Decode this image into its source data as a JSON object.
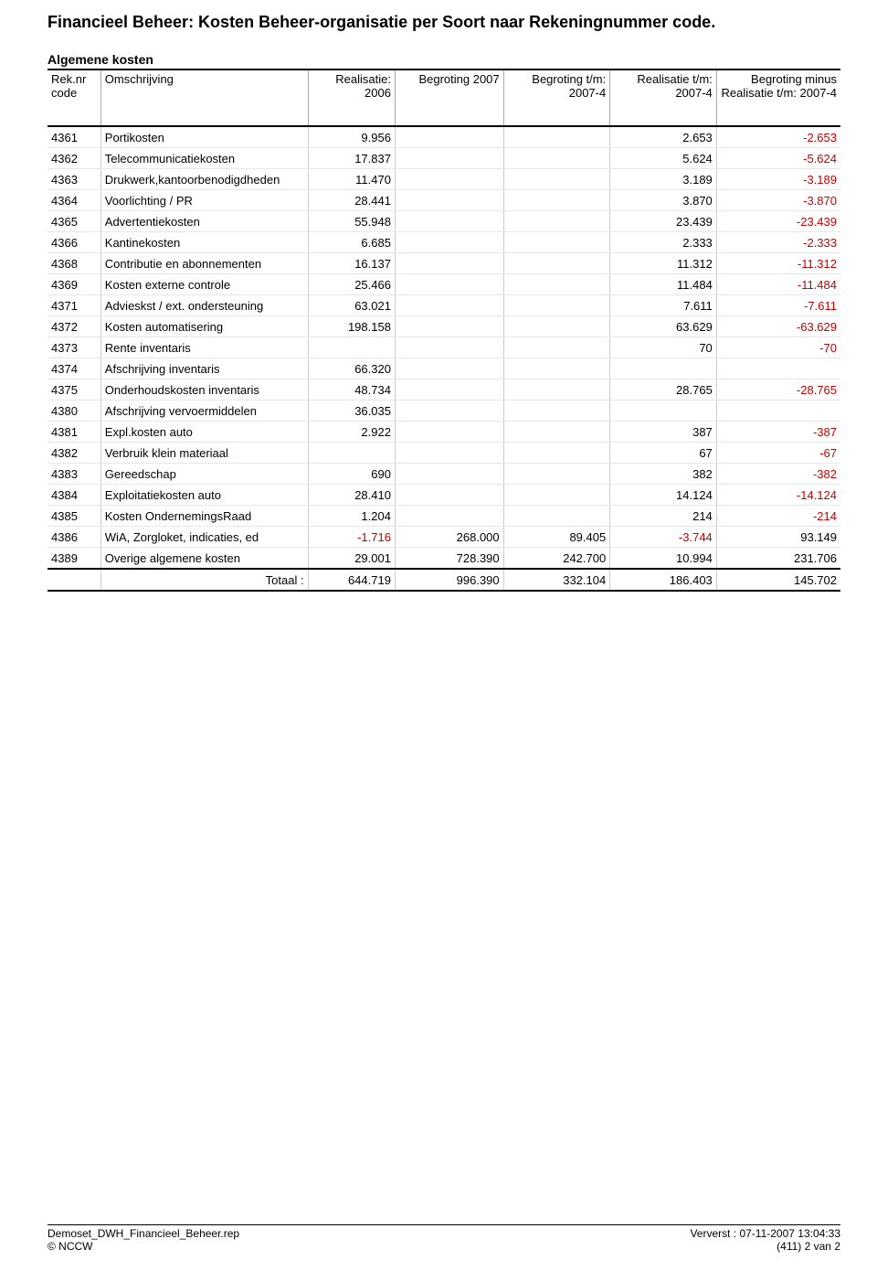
{
  "title": "Financieel Beheer: Kosten Beheer-organisatie per Soort naar Rekeningnummer code.",
  "section": "Algemene kosten",
  "columns": {
    "code": "Rek.nr code",
    "desc": "Omschrijving",
    "r2006": "Realisatie: 2006",
    "b2007": "Begroting 2007",
    "btm": "Begroting t/m: 2007-4",
    "rtm": "Realisatie t/m: 2007-4",
    "bmr": "Begroting minus Realisatie t/m: 2007-4"
  },
  "rows": [
    {
      "code": "4361",
      "desc": "Portikosten",
      "r2006": "9.956",
      "b2007": "",
      "btm": "",
      "rtm": "2.653",
      "bmr": "-2.653"
    },
    {
      "code": "4362",
      "desc": "Telecommunicatiekosten",
      "r2006": "17.837",
      "b2007": "",
      "btm": "",
      "rtm": "5.624",
      "bmr": "-5.624"
    },
    {
      "code": "4363",
      "desc": "Drukwerk,kantoorbenodigdheden",
      "r2006": "11.470",
      "b2007": "",
      "btm": "",
      "rtm": "3.189",
      "bmr": "-3.189"
    },
    {
      "code": "4364",
      "desc": "Voorlichting / PR",
      "r2006": "28.441",
      "b2007": "",
      "btm": "",
      "rtm": "3.870",
      "bmr": "-3.870"
    },
    {
      "code": "4365",
      "desc": "Advertentiekosten",
      "r2006": "55.948",
      "b2007": "",
      "btm": "",
      "rtm": "23.439",
      "bmr": "-23.439"
    },
    {
      "code": "4366",
      "desc": "Kantinekosten",
      "r2006": "6.685",
      "b2007": "",
      "btm": "",
      "rtm": "2.333",
      "bmr": "-2.333"
    },
    {
      "code": "4368",
      "desc": "Contributie en abonnementen",
      "r2006": "16.137",
      "b2007": "",
      "btm": "",
      "rtm": "11.312",
      "bmr": "-11.312"
    },
    {
      "code": "4369",
      "desc": "Kosten externe controle",
      "r2006": "25.466",
      "b2007": "",
      "btm": "",
      "rtm": "11.484",
      "bmr": "-11.484"
    },
    {
      "code": "4371",
      "desc": "Advieskst / ext. ondersteuning",
      "r2006": "63.021",
      "b2007": "",
      "btm": "",
      "rtm": "7.611",
      "bmr": "-7.611"
    },
    {
      "code": "4372",
      "desc": "Kosten automatisering",
      "r2006": "198.158",
      "b2007": "",
      "btm": "",
      "rtm": "63.629",
      "bmr": "-63.629"
    },
    {
      "code": "4373",
      "desc": "Rente inventaris",
      "r2006": "",
      "b2007": "",
      "btm": "",
      "rtm": "70",
      "bmr": "-70"
    },
    {
      "code": "4374",
      "desc": "Afschrijving inventaris",
      "r2006": "66.320",
      "b2007": "",
      "btm": "",
      "rtm": "",
      "bmr": ""
    },
    {
      "code": "4375",
      "desc": "Onderhoudskosten inventaris",
      "r2006": "48.734",
      "b2007": "",
      "btm": "",
      "rtm": "28.765",
      "bmr": "-28.765"
    },
    {
      "code": "4380",
      "desc": "Afschrijving vervoermiddelen",
      "r2006": "36.035",
      "b2007": "",
      "btm": "",
      "rtm": "",
      "bmr": ""
    },
    {
      "code": "4381",
      "desc": "Expl.kosten auto",
      "r2006": "2.922",
      "b2007": "",
      "btm": "",
      "rtm": "387",
      "bmr": "-387"
    },
    {
      "code": "4382",
      "desc": "Verbruik klein materiaal",
      "r2006": "",
      "b2007": "",
      "btm": "",
      "rtm": "67",
      "bmr": "-67"
    },
    {
      "code": "4383",
      "desc": "Gereedschap",
      "r2006": "690",
      "b2007": "",
      "btm": "",
      "rtm": "382",
      "bmr": "-382"
    },
    {
      "code": "4384",
      "desc": "Exploitatiekosten auto",
      "r2006": "28.410",
      "b2007": "",
      "btm": "",
      "rtm": "14.124",
      "bmr": "-14.124"
    },
    {
      "code": "4385",
      "desc": "Kosten OndernemingsRaad",
      "r2006": "1.204",
      "b2007": "",
      "btm": "",
      "rtm": "214",
      "bmr": "-214"
    },
    {
      "code": "4386",
      "desc": "WiA, Zorgloket, indicaties, ed",
      "r2006": "-1.716",
      "b2007": "268.000",
      "btm": "89.405",
      "rtm": "-3.744",
      "bmr": "93.149"
    },
    {
      "code": "4389",
      "desc": "Overige algemene kosten",
      "r2006": "29.001",
      "b2007": "728.390",
      "btm": "242.700",
      "rtm": "10.994",
      "bmr": "231.706"
    }
  ],
  "total": {
    "label": "Totaal :",
    "r2006": "644.719",
    "b2007": "996.390",
    "btm": "332.104",
    "rtm": "186.403",
    "bmr": "145.702"
  },
  "footer": {
    "file": "Demoset_DWH_Financieel_Beheer.rep",
    "refreshed": "Ververst : 07-11-2007   13:04:33",
    "copyright": "© NCCW",
    "page": "(411) 2 van  2"
  }
}
